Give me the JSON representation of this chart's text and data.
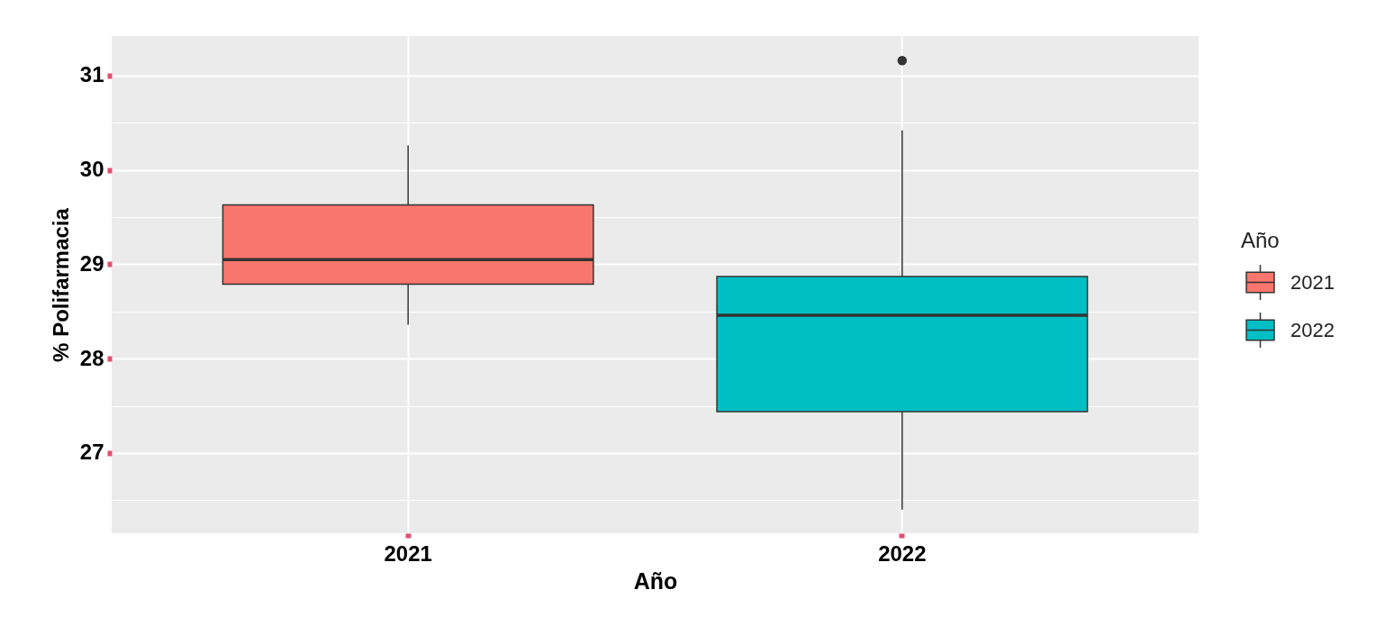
{
  "chart_data": {
    "type": "box",
    "xlabel": "Año",
    "ylabel": "% Polifarmacia",
    "legend_title": "Año",
    "categories": [
      "2021",
      "2022"
    ],
    "series": [
      {
        "name": "2021",
        "color": "#f8766d",
        "boxes": [
          {
            "low": 28.36,
            "q1": 28.79,
            "median": 29.05,
            "q3": 29.63,
            "high": 30.26
          },
          null
        ]
      },
      {
        "name": "2022",
        "color": "#00bfc4",
        "boxes": [
          null,
          {
            "low": 26.4,
            "q1": 27.44,
            "median": 28.46,
            "q3": 28.87,
            "high": 30.42,
            "outliers": [
              31.16
            ]
          }
        ]
      }
    ],
    "ylim": [
      26.15,
      31.42
    ],
    "yticks": [
      {
        "value": 26.5,
        "label": null
      },
      27,
      {
        "value": 27.5,
        "label": null
      },
      28,
      {
        "value": 28.5,
        "label": null
      },
      29,
      {
        "value": 29.5,
        "label": null
      },
      30,
      {
        "value": 30.5,
        "label": null
      },
      31
    ],
    "grid": true,
    "legend": "right"
  }
}
